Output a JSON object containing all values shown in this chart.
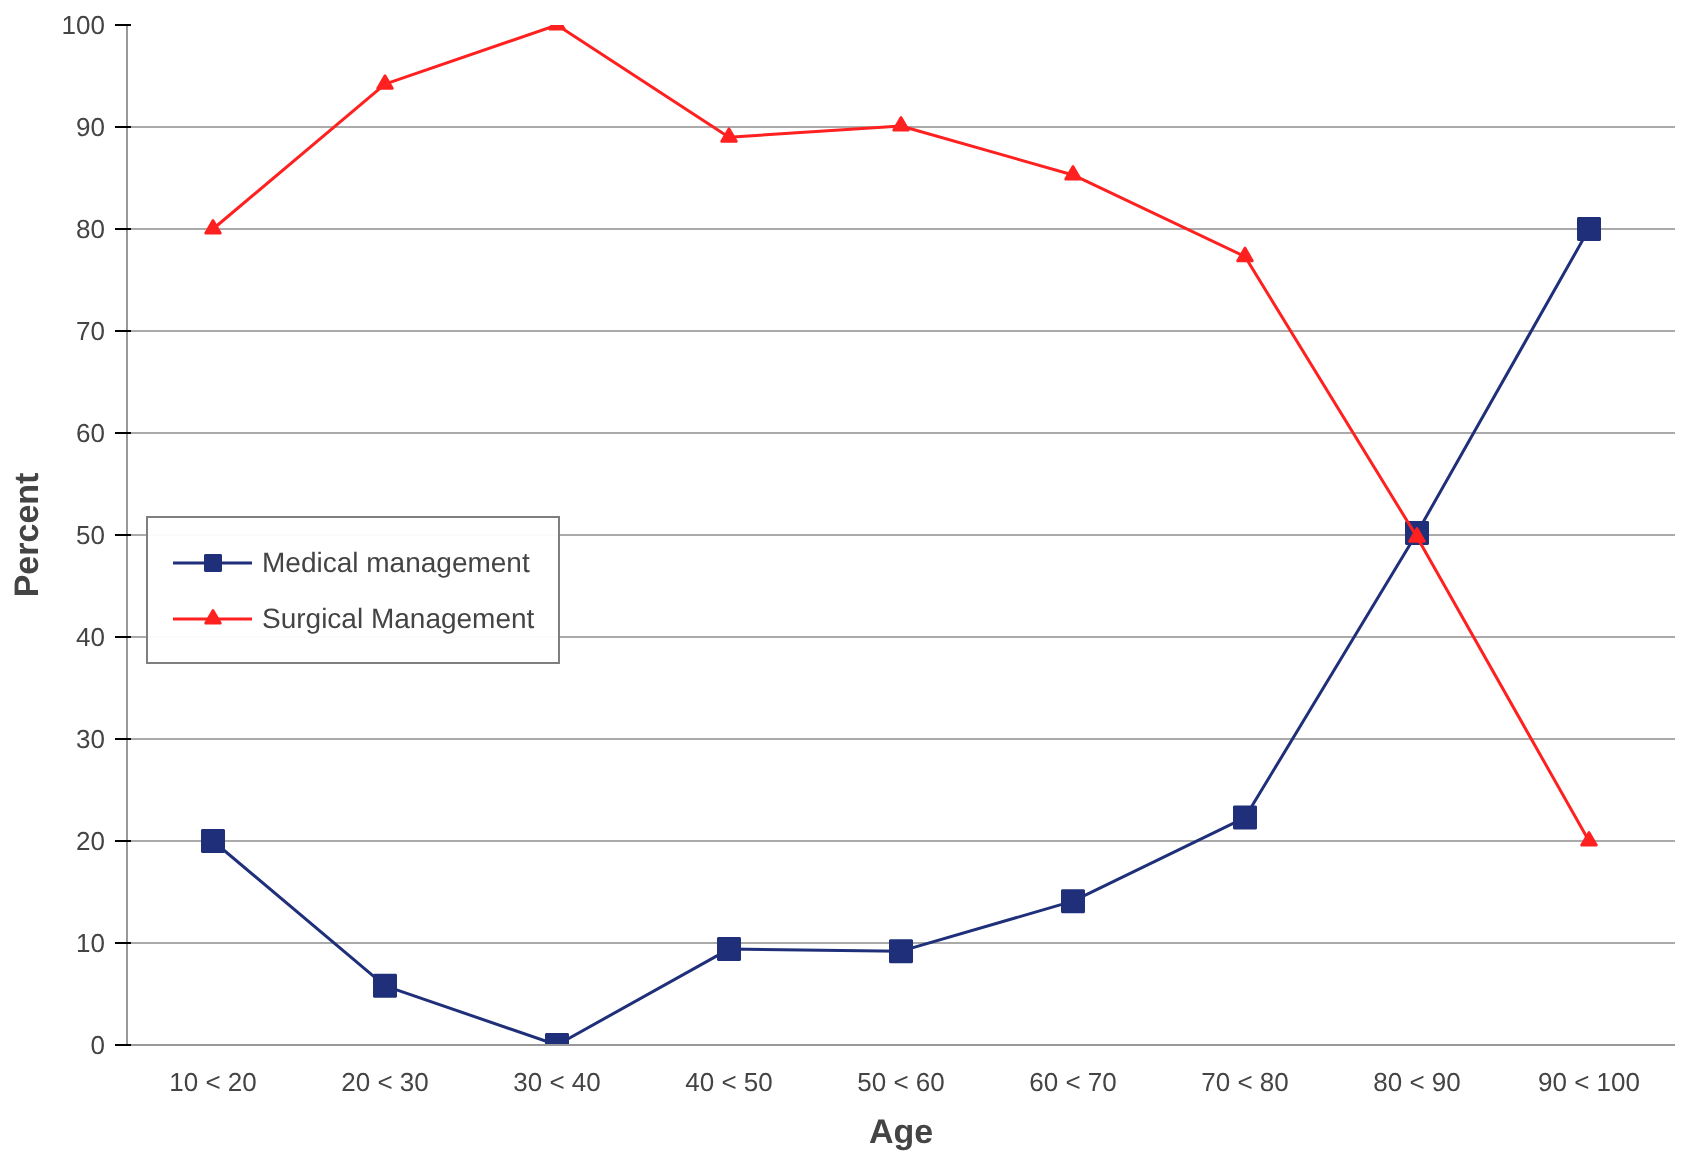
{
  "chart_data": {
    "type": "line",
    "xlabel": "Age",
    "ylabel": "Percent",
    "categories": [
      "10 < 20",
      "20 < 30",
      "30 < 40",
      "40 < 50",
      "50 < 60",
      "60 < 70",
      "70 < 80",
      "80 < 90",
      "90 < 100"
    ],
    "series": [
      {
        "name": "Medical management",
        "color": "#1f2f7a",
        "marker": "square",
        "values": [
          20,
          5.8,
          0,
          9.4,
          9.2,
          14.1,
          22.3,
          50.2,
          80
        ]
      },
      {
        "name": "Surgical Management",
        "color": "#ff2020",
        "marker": "triangle",
        "values": [
          80,
          94.2,
          100,
          89,
          90.1,
          85.3,
          77.3,
          49.8,
          20
        ]
      }
    ],
    "ylim": [
      0,
      100
    ],
    "yticks": [
      0,
      10,
      20,
      30,
      40,
      50,
      60,
      70,
      80,
      90,
      100
    ],
    "grid": "y",
    "legend": "left",
    "line_style": "solid"
  }
}
